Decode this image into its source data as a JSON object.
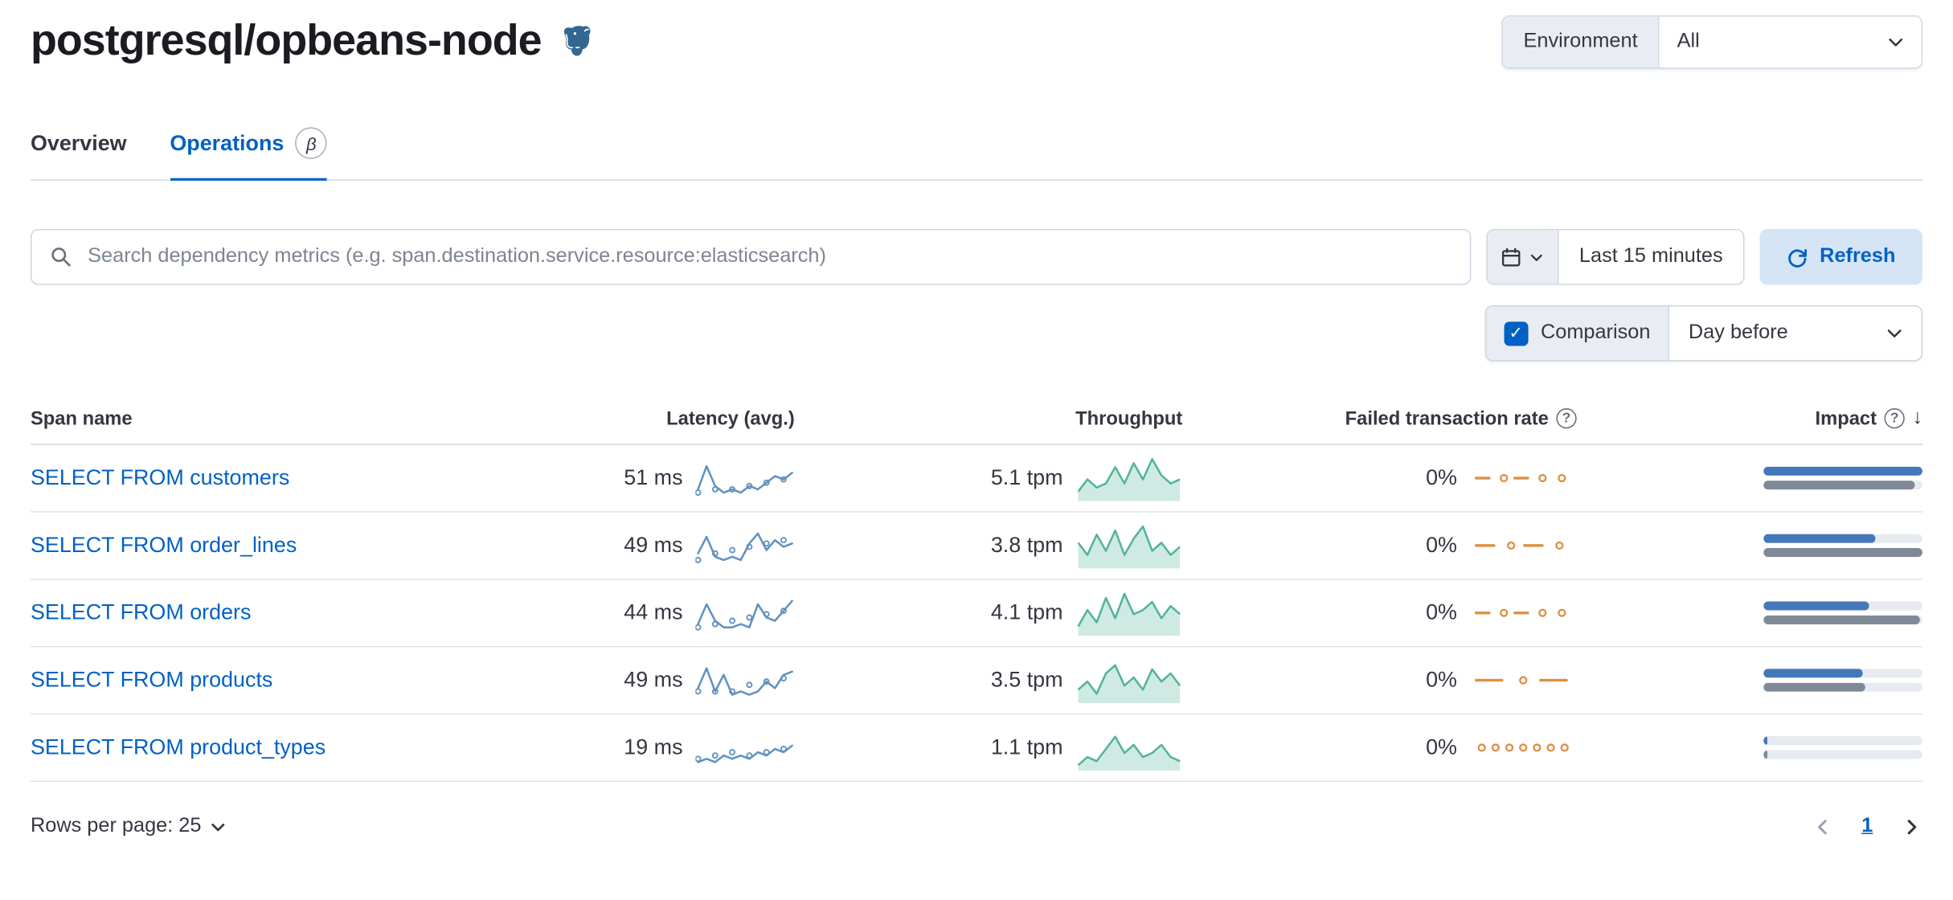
{
  "colors": {
    "accent": "#0061c4",
    "latency_spark": "#6092c0",
    "throughput_spark": "#54b399",
    "failed_spark": "#dd9147",
    "impact_current": "#4478ba",
    "impact_previous": "#808997"
  },
  "icons": {
    "question": "?",
    "sort_desc": "↓",
    "check": "✓"
  },
  "header": {
    "title": "postgresql/opbeans-node",
    "environment_label": "Environment",
    "environment_value": "All"
  },
  "tabs": [
    {
      "label": "Overview"
    },
    {
      "label": "Operations",
      "badge": "β"
    }
  ],
  "toolbar": {
    "search_placeholder": "Search dependency metrics (e.g. span.destination.service.resource:elasticsearch)",
    "time_range": "Last 15 minutes",
    "refresh_label": "Refresh"
  },
  "comparison": {
    "label": "Comparison",
    "checked": true,
    "value": "Day before"
  },
  "table": {
    "columns": {
      "span_name": "Span name",
      "latency": "Latency (avg.)",
      "throughput": "Throughput",
      "failed_rate": "Failed transaction rate",
      "impact": "Impact"
    },
    "rows": [
      {
        "span_name": "SELECT FROM customers",
        "latency": {
          "value": "51 ms",
          "cur": [
            2,
            9,
            3,
            1,
            2,
            1,
            3,
            2,
            4,
            6,
            5,
            7
          ],
          "prev": [
            1,
            4,
            2,
            3,
            2,
            4,
            3,
            5,
            4,
            6,
            5,
            8
          ]
        },
        "throughput": {
          "value": "5.1 tpm",
          "cur": [
            2,
            5,
            3,
            4,
            8,
            4,
            9,
            5,
            10,
            6,
            4,
            5
          ]
        },
        "failed": {
          "value": "0%",
          "pattern": [
            "dash",
            "dot",
            "dash",
            "dot",
            "dot"
          ]
        },
        "impact": {
          "current": 100,
          "previous": 95
        }
      },
      {
        "span_name": "SELECT FROM order_lines",
        "latency": {
          "value": "49 ms",
          "cur": [
            3,
            8,
            2,
            1,
            2,
            1,
            6,
            9,
            4,
            7,
            5,
            6
          ],
          "prev": [
            1,
            2,
            3,
            2,
            4,
            3,
            5,
            4,
            6,
            5,
            7,
            6
          ]
        },
        "throughput": {
          "value": "3.8 tpm",
          "cur": [
            6,
            3,
            8,
            4,
            9,
            3,
            7,
            10,
            4,
            6,
            3,
            5
          ]
        },
        "failed": {
          "value": "0%",
          "pattern": [
            "dash",
            "dot",
            "dash",
            "dot"
          ]
        },
        "impact": {
          "current": 70,
          "previous": 100
        }
      },
      {
        "span_name": "SELECT FROM orders",
        "latency": {
          "value": "44 ms",
          "cur": [
            2,
            8,
            3,
            1,
            1,
            2,
            1,
            8,
            4,
            3,
            6,
            9
          ],
          "prev": [
            1,
            3,
            2,
            4,
            3,
            2,
            4,
            3,
            5,
            4,
            6,
            7
          ]
        },
        "throughput": {
          "value": "4.1 tpm",
          "cur": [
            2,
            6,
            3,
            9,
            4,
            10,
            5,
            6,
            8,
            4,
            7,
            5
          ]
        },
        "failed": {
          "value": "0%",
          "pattern": [
            "dash",
            "dot",
            "dash",
            "dot",
            "dot"
          ]
        },
        "impact": {
          "current": 66,
          "previous": 98
        }
      },
      {
        "span_name": "SELECT FROM products",
        "latency": {
          "value": "49 ms",
          "cur": [
            3,
            9,
            2,
            7,
            1,
            2,
            1,
            2,
            5,
            3,
            7,
            8
          ],
          "prev": [
            2,
            3,
            2,
            4,
            2,
            3,
            4,
            3,
            5,
            4,
            6,
            5
          ]
        },
        "throughput": {
          "value": "3.5 tpm",
          "cur": [
            3,
            5,
            2,
            7,
            9,
            4,
            6,
            3,
            8,
            5,
            7,
            4
          ]
        },
        "failed": {
          "value": "0%",
          "pattern": [
            "dash",
            "dot",
            "dash"
          ]
        },
        "impact": {
          "current": 62,
          "previous": 64
        }
      },
      {
        "span_name": "SELECT FROM product_types",
        "latency": {
          "value": "19 ms",
          "cur": [
            1,
            2,
            1,
            3,
            2,
            3,
            2,
            4,
            3,
            5,
            4,
            6
          ],
          "prev": [
            2,
            1,
            3,
            2,
            4,
            2,
            3,
            2,
            4,
            3,
            5,
            4
          ]
        },
        "throughput": {
          "value": "1.1 tpm",
          "cur": [
            1,
            3,
            2,
            5,
            8,
            4,
            6,
            3,
            4,
            6,
            3,
            2
          ]
        },
        "failed": {
          "value": "0%",
          "pattern": [
            "dot",
            "dot",
            "dot",
            "dot",
            "dot",
            "dot",
            "dot"
          ]
        },
        "impact": {
          "current": 2,
          "previous": 2
        }
      }
    ]
  },
  "footer": {
    "rows_per_page_label": "Rows per page: 25",
    "page": "1"
  }
}
